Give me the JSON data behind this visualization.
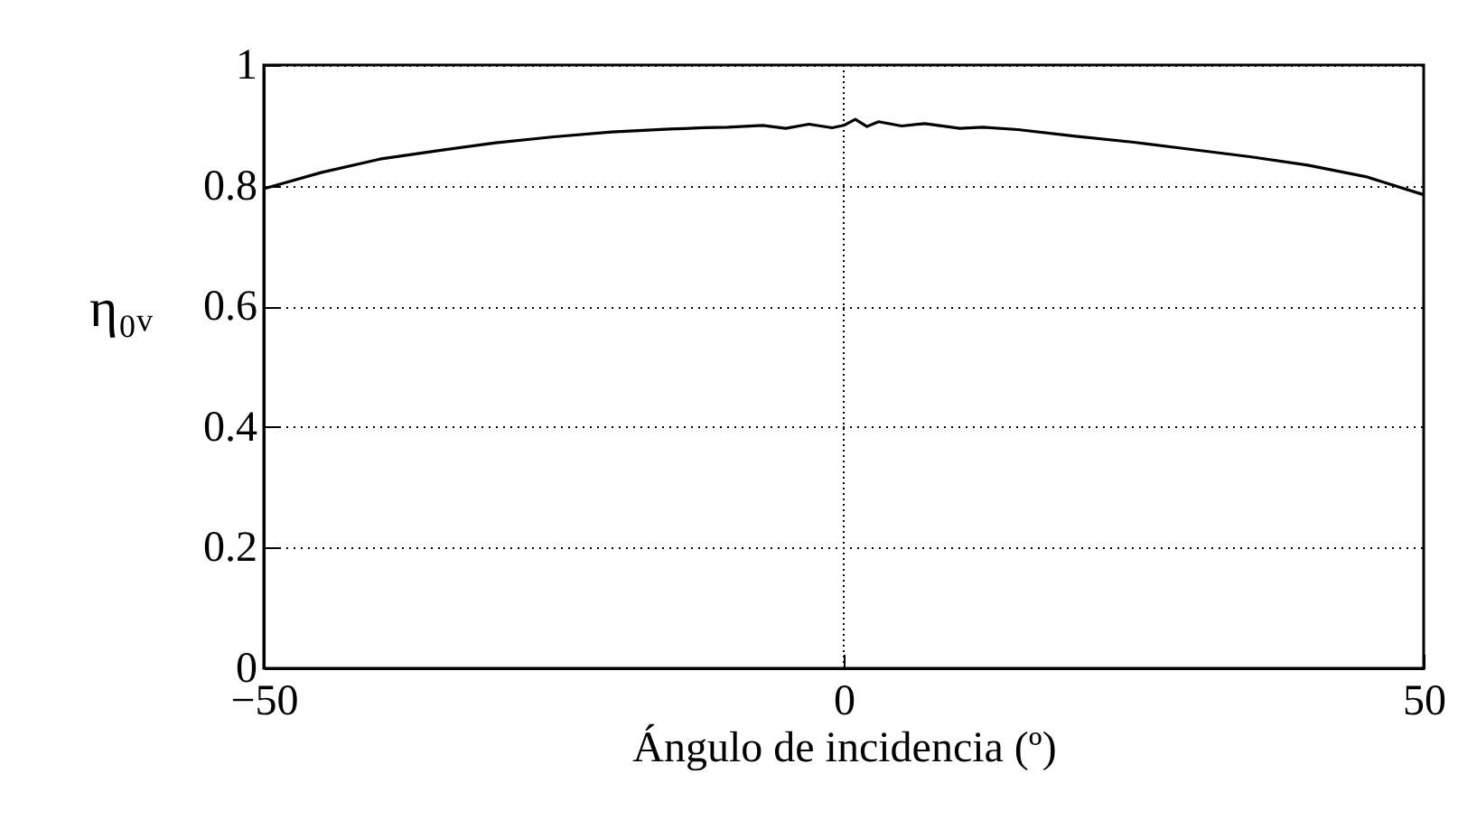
{
  "chart_data": {
    "type": "line",
    "xlabel": "Ángulo de incidencia (º)",
    "ylabel": "η₀ᵥ",
    "x": [
      -50,
      -45,
      -40,
      -35,
      -30,
      -25,
      -20,
      -15,
      -12,
      -10,
      -7,
      -5,
      -3,
      -1,
      0,
      1,
      2,
      3,
      5,
      7,
      10,
      12,
      15,
      20,
      25,
      30,
      35,
      40,
      45,
      50
    ],
    "series": [
      {
        "color": "#000000",
        "values": [
          0.795,
          0.822,
          0.844,
          0.858,
          0.871,
          0.881,
          0.889,
          0.894,
          0.896,
          0.897,
          0.9,
          0.895,
          0.902,
          0.896,
          0.9,
          0.91,
          0.898,
          0.906,
          0.899,
          0.903,
          0.895,
          0.897,
          0.893,
          0.882,
          0.872,
          0.86,
          0.848,
          0.834,
          0.815,
          0.785
        ]
      }
    ],
    "xlim": [
      -50,
      50
    ],
    "ylim": [
      0,
      1
    ],
    "xticks": [
      -50,
      0,
      50
    ],
    "yticks": [
      0,
      0.2,
      0.4,
      0.6,
      0.8,
      1
    ],
    "ref_lines": [
      {
        "axis": "x",
        "value": 0,
        "line_style": "dotted"
      }
    ],
    "grid": "y",
    "line_style": "solid",
    "marker": "none"
  }
}
